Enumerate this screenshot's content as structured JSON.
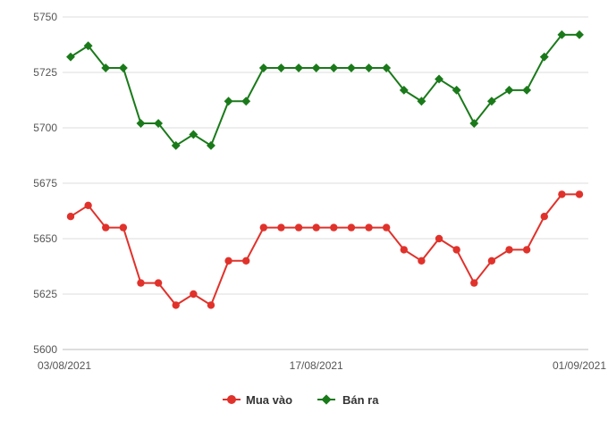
{
  "chart_data": {
    "type": "line",
    "title": "",
    "xlabel": "",
    "ylabel": "",
    "ylim": [
      5600,
      5750
    ],
    "yticks": [
      5600,
      5625,
      5650,
      5675,
      5700,
      5725,
      5750
    ],
    "x_tick_labels": [
      {
        "index": 0,
        "label": "03/08/2021"
      },
      {
        "index": 14,
        "label": "17/08/2021"
      },
      {
        "index": 29,
        "label": "01/09/2021"
      }
    ],
    "grid": "horizontal",
    "legend_position": "bottom",
    "series": [
      {
        "name": "Mua vào",
        "color": "#e0322b",
        "marker": "circle",
        "values": [
          5660,
          5665,
          5655,
          5655,
          5630,
          5630,
          5620,
          5625,
          5620,
          5640,
          5640,
          5655,
          5655,
          5655,
          5655,
          5655,
          5655,
          5655,
          5655,
          5645,
          5640,
          5650,
          5645,
          5630,
          5640,
          5645,
          5645,
          5660,
          5670,
          5670
        ]
      },
      {
        "name": "Bán ra",
        "color": "#1a7a1a",
        "marker": "diamond",
        "values": [
          5732,
          5737,
          5727,
          5727,
          5702,
          5702,
          5692,
          5697,
          5692,
          5712,
          5712,
          5727,
          5727,
          5727,
          5727,
          5727,
          5727,
          5727,
          5727,
          5717,
          5712,
          5722,
          5717,
          5702,
          5712,
          5717,
          5717,
          5732,
          5742,
          5742
        ]
      }
    ]
  }
}
